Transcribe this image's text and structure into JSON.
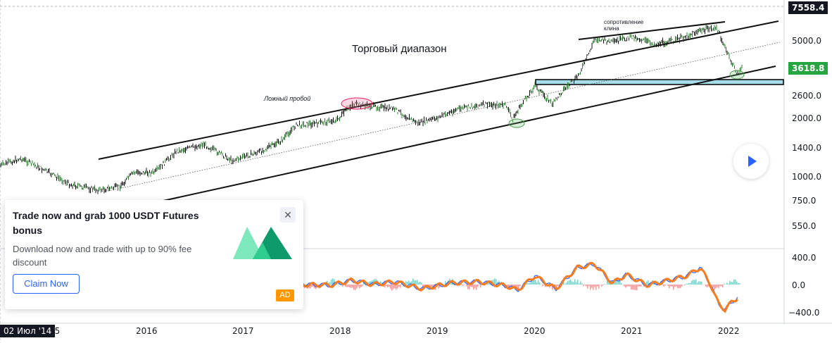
{
  "price_axis": {
    "labels": [
      "7558.4",
      "5000.0",
      "3618.8",
      "2600.0",
      "2000.0",
      "1400.0",
      "1000.0",
      "750.0",
      "550.0"
    ],
    "current_price": "3618.8",
    "top_value": "7558.4"
  },
  "osc_axis": {
    "labels": [
      "400.0",
      "0.0",
      "−400.0"
    ]
  },
  "time_axis": {
    "labels": [
      "15",
      "2016",
      "2017",
      "2018",
      "2019",
      "2020",
      "2021",
      "2022"
    ],
    "crosshair_date": "02 Июл '14"
  },
  "annotations": {
    "trading_range": "Торговый диапазон",
    "false_breakout": "Ложный пробой",
    "wedge_resistance_1": "сопротивление",
    "wedge_resistance_2": "клина"
  },
  "ad": {
    "title": "Trade now and grab 1000 USDT Futures bonus",
    "text": "Download now and trade with up to 90% fee discount",
    "cta": "Claim Now",
    "badge": "AD",
    "close_icon": "close-icon",
    "logo_colors": [
      "#6fe6b4",
      "#2ecc8f",
      "#0f9a6c"
    ]
  },
  "colors": {
    "candle_up": "#2e7d32",
    "candle_down": "#111111",
    "osc_line_1": "#f57c1f",
    "osc_line_2": "#2962ff",
    "support_zone": "#a8dbe8",
    "ellipse_pink": "#f06292",
    "ellipse_green": "#66bb6a"
  }
}
